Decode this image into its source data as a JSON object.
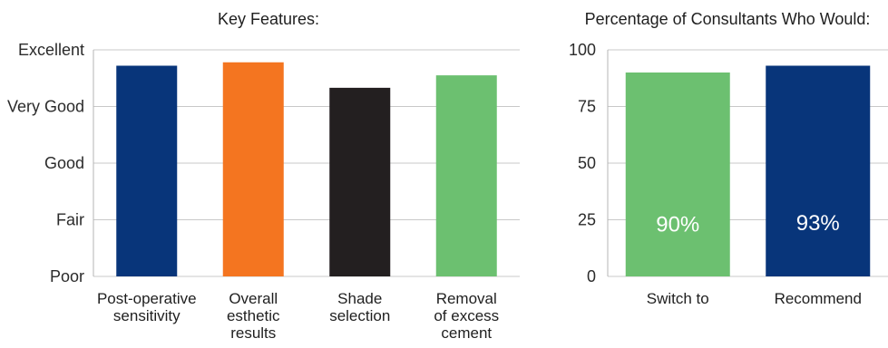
{
  "chart_data": [
    {
      "type": "bar",
      "title": "Key Features:",
      "xlabel": "",
      "ylabel": "",
      "categories": [
        [
          "Post-operative",
          "sensitivity"
        ],
        [
          "Overall",
          "esthetic",
          "results"
        ],
        [
          "Shade",
          "selection"
        ],
        [
          "Removal",
          "of excess",
          "cement"
        ]
      ],
      "values": [
        3.72,
        3.78,
        3.33,
        3.55
      ],
      "colors": [
        "#08357a",
        "#f47520",
        "#231f20",
        "#6cc070"
      ],
      "yticks": [
        "Poor",
        "Fair",
        "Good",
        "Very Good",
        "Excellent"
      ],
      "ylim": [
        0,
        4
      ],
      "grid": true,
      "legend": "none"
    },
    {
      "type": "bar",
      "title": "Percentage of Consultants Who Would:",
      "xlabel": "",
      "ylabel": "",
      "categories": [
        [
          "Switch to"
        ],
        [
          "Recommend"
        ]
      ],
      "values": [
        90,
        93
      ],
      "data_labels": [
        "90%",
        "93%"
      ],
      "colors": [
        "#6cc070",
        "#08357a"
      ],
      "yticks": [
        "0",
        "25",
        "50",
        "75",
        "100"
      ],
      "ylim": [
        0,
        100
      ],
      "grid": true,
      "legend": "none"
    }
  ]
}
